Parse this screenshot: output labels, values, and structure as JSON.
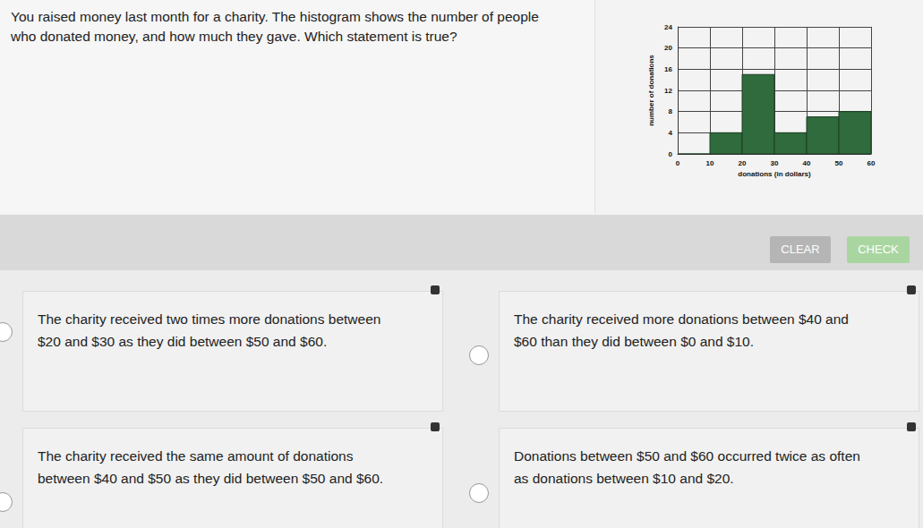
{
  "question": {
    "lines": [
      "You raised money last month for a charity. The histogram shows the number of people",
      "who donated money, and how much they gave. Which statement is true?"
    ]
  },
  "buttons": [
    "CLEAR",
    "CHECK"
  ],
  "options": [
    {
      "lines": [
        "The charity received two times more donations between",
        "$20 and $30 as they did between $50 and $60."
      ]
    },
    {
      "lines": [
        "The charity received more donations between $40 and",
        "$60 than they did between $0 and $10."
      ]
    },
    {
      "lines": [
        "The charity received the same amount of donations",
        "between $40 and $50 as they did between $50 and $60."
      ]
    },
    {
      "lines": [
        "Donations between $50 and $60 occurred twice as often",
        "as donations between $10 and $20."
      ]
    }
  ],
  "chart_data": {
    "type": "histogram",
    "bins": [
      0,
      10,
      20,
      30,
      40,
      50,
      60
    ],
    "values": [
      0,
      4,
      15,
      4,
      7,
      8
    ],
    "color": "#2f6b3c",
    "xlabel": "donations (in dollars)",
    "ylabel": "number of donations",
    "xlim": [
      0,
      60
    ],
    "xticks": [
      0,
      10,
      20,
      30,
      40,
      50,
      60
    ],
    "ylim": [
      0,
      24
    ],
    "yticks": [
      0,
      4,
      8,
      12,
      16,
      20,
      24
    ],
    "grid": true
  }
}
